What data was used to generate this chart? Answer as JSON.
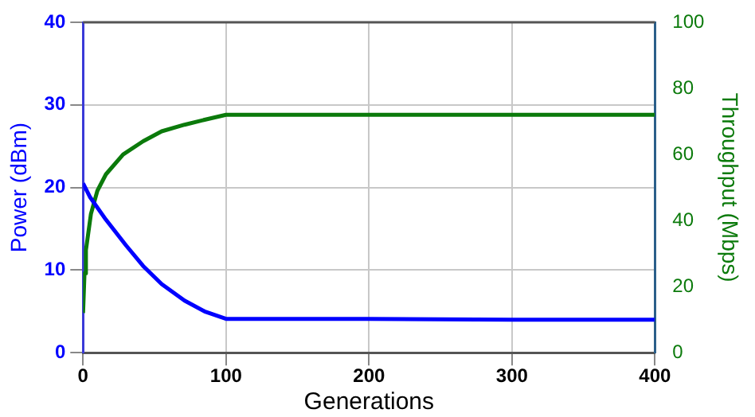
{
  "chart_data": {
    "type": "line",
    "xlabel": "Generations",
    "ylabel": "Power (dBm)",
    "y2label": "Throughput (Mbps)",
    "xlim": [
      0,
      400
    ],
    "xticks": [
      0,
      100,
      200,
      300,
      400
    ],
    "ylim": [
      0,
      40
    ],
    "yticks": [
      0,
      10,
      20,
      30,
      40
    ],
    "y2lim": [
      0,
      100
    ],
    "y2ticks": [
      0,
      20,
      40,
      60,
      80,
      100
    ],
    "grid": true,
    "legend": false,
    "marker": "none",
    "line_style": "solid",
    "series": [
      {
        "color": "#0000ff",
        "x": [
          0,
          5,
          16,
          30,
          42,
          55,
          71,
          85,
          100,
          200,
          300,
          400
        ],
        "values": [
          20.5,
          18.8,
          16.1,
          13,
          10.5,
          8.3,
          6.3,
          5,
          4.1,
          4.1,
          4,
          4
        ]
      },
      {
        "color": "#0b7a0b",
        "axis": "y2",
        "x": [
          0,
          1,
          2,
          5.5,
          10,
          16,
          28,
          42,
          55,
          71,
          85,
          100,
          200,
          300,
          400
        ],
        "values": [
          12,
          24,
          31,
          42,
          49,
          54,
          60,
          64,
          67,
          69,
          70.5,
          72,
          72,
          72,
          72
        ]
      }
    ]
  }
}
